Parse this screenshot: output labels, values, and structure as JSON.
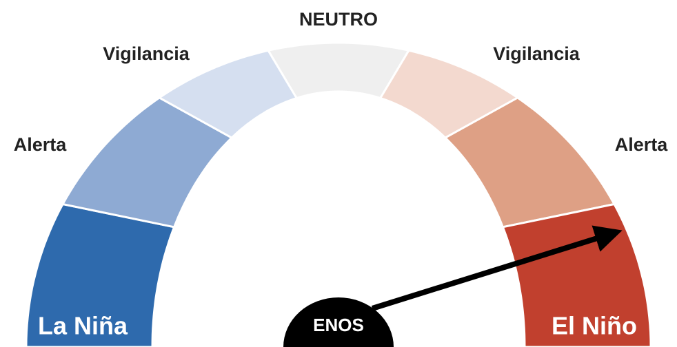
{
  "gauge": {
    "top": "NEUTRO",
    "left_watch": "Vigilancia",
    "right_watch": "Vigilancia",
    "left_alert": "Alerta",
    "right_alert": "Alerta",
    "left_end": "La Niña",
    "right_end": "El Niño",
    "center": "ENOS"
  }
}
